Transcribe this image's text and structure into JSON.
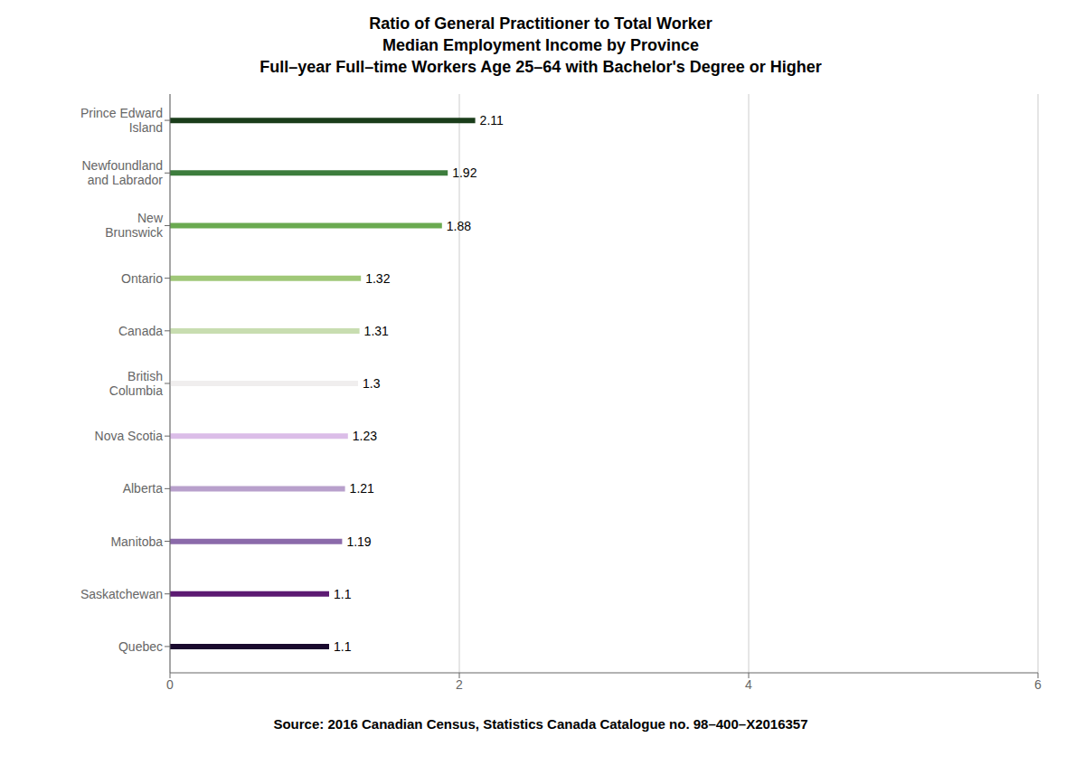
{
  "chart_data": {
    "type": "bar",
    "orientation": "horizontal",
    "title": "Ratio of General Practitioner to Total Worker\nMedian Employment Income by Province\nFull–year Full–time Workers Age 25–64 with Bachelor's Degree or Higher",
    "annotation": "Source: 2016 Canadian Census, Statistics Canada Catalogue no. 98–400–X2016357",
    "categories": [
      "Quebec",
      "Saskatchewan",
      "Manitoba",
      "Alberta",
      "Nova Scotia",
      "British\nColumbia",
      "Canada",
      "Ontario",
      "New\nBrunswick",
      "Newfoundland\nand Labrador",
      "Prince Edward\nIsland"
    ],
    "values": [
      1.1,
      1.1,
      1.19,
      1.21,
      1.23,
      1.3,
      1.31,
      1.32,
      1.88,
      1.92,
      2.11
    ],
    "colors": [
      "#1a0a2e",
      "#5c1a72",
      "#8b6aaa",
      "#b8a0cc",
      "#dbbde8",
      "#f0eeee",
      "#c8ddb0",
      "#a0c878",
      "#6aaa50",
      "#3d7d3d",
      "#1a3d1a"
    ],
    "xlim": [
      0,
      6
    ],
    "xticks": [
      0,
      2,
      4,
      6
    ],
    "grid": true,
    "data_labels": true
  }
}
